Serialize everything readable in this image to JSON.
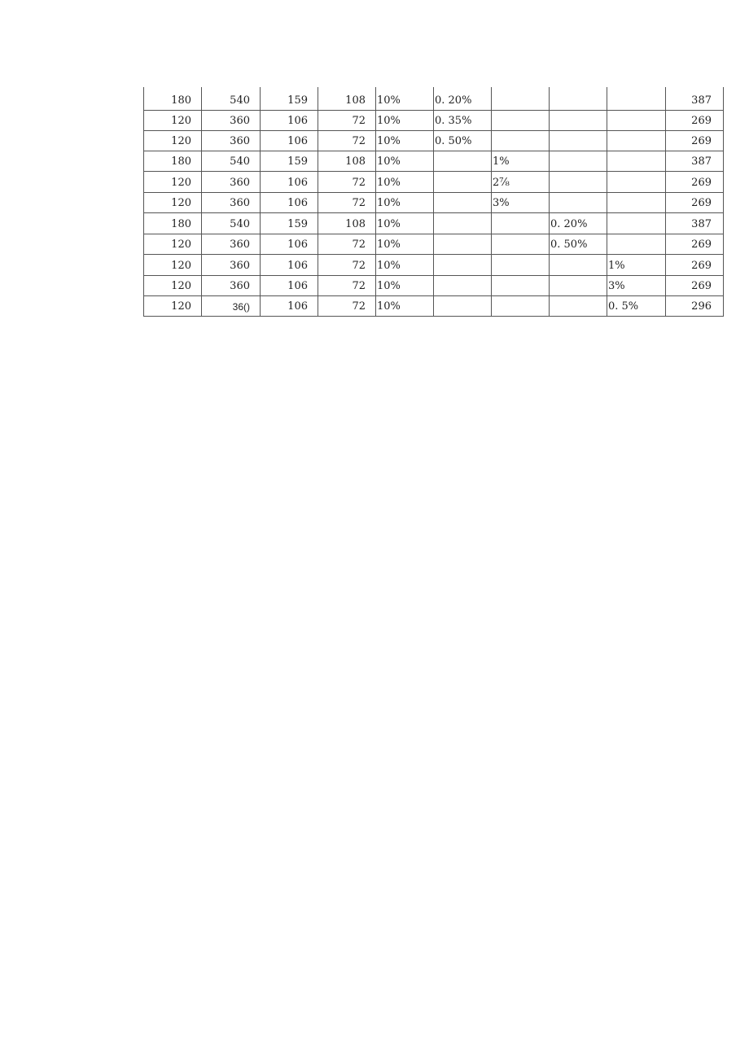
{
  "table": {
    "rows": [
      {
        "c1": "180",
        "c2": "540",
        "c3": "159",
        "c4": "108",
        "c5": "10%",
        "c6": "0. 20%",
        "c7": "",
        "c8": "",
        "c9": "",
        "c10": "387"
      },
      {
        "c1": "120",
        "c2": "360",
        "c3": "106",
        "c4": "72",
        "c5": "10%",
        "c6": "0. 35%",
        "c7": "",
        "c8": "",
        "c9": "",
        "c10": "269"
      },
      {
        "c1": "120",
        "c2": "360",
        "c3": "106",
        "c4": "72",
        "c5": "10%",
        "c6": "0. 50%",
        "c7": "",
        "c8": "",
        "c9": "",
        "c10": "269"
      },
      {
        "c1": "180",
        "c2": "540",
        "c3": "159",
        "c4": "108",
        "c5": "10%",
        "c6": "",
        "c7": "1%",
        "c8": "",
        "c9": "",
        "c10": "387"
      },
      {
        "c1": "120",
        "c2": "360",
        "c3": "106",
        "c4": "72",
        "c5": "10%",
        "c6": "",
        "c7": "2⅞",
        "c8": "",
        "c9": "",
        "c10": "269"
      },
      {
        "c1": "120",
        "c2": "360",
        "c3": "106",
        "c4": "72",
        "c5": "10%",
        "c6": "",
        "c7": "3%",
        "c8": "",
        "c9": "",
        "c10": "269"
      },
      {
        "c1": "180",
        "c2": "540",
        "c3": "159",
        "c4": "108",
        "c5": "10%",
        "c6": "",
        "c7": "",
        "c8": "0. 20%",
        "c9": "",
        "c10": "387"
      },
      {
        "c1": "120",
        "c2": "360",
        "c3": "106",
        "c4": "72",
        "c5": "10%",
        "c6": "",
        "c7": "",
        "c8": "0. 50%",
        "c9": "",
        "c10": "269"
      },
      {
        "c1": "120",
        "c2": "360",
        "c3": "106",
        "c4": "72",
        "c5": "10%",
        "c6": "",
        "c7": "",
        "c8": "",
        "c9": "1%",
        "c10": "269"
      },
      {
        "c1": "120",
        "c2": "360",
        "c3": "106",
        "c4": "72",
        "c5": "10%",
        "c6": "",
        "c7": "",
        "c8": "",
        "c9": "3%",
        "c10": "269"
      },
      {
        "c1": "120",
        "c2": "36()",
        "c3": "106",
        "c4": "72",
        "c5": "10%",
        "c6": "",
        "c7": "",
        "c8": "",
        "c9": "0. 5%",
        "c10": "296"
      }
    ]
  }
}
